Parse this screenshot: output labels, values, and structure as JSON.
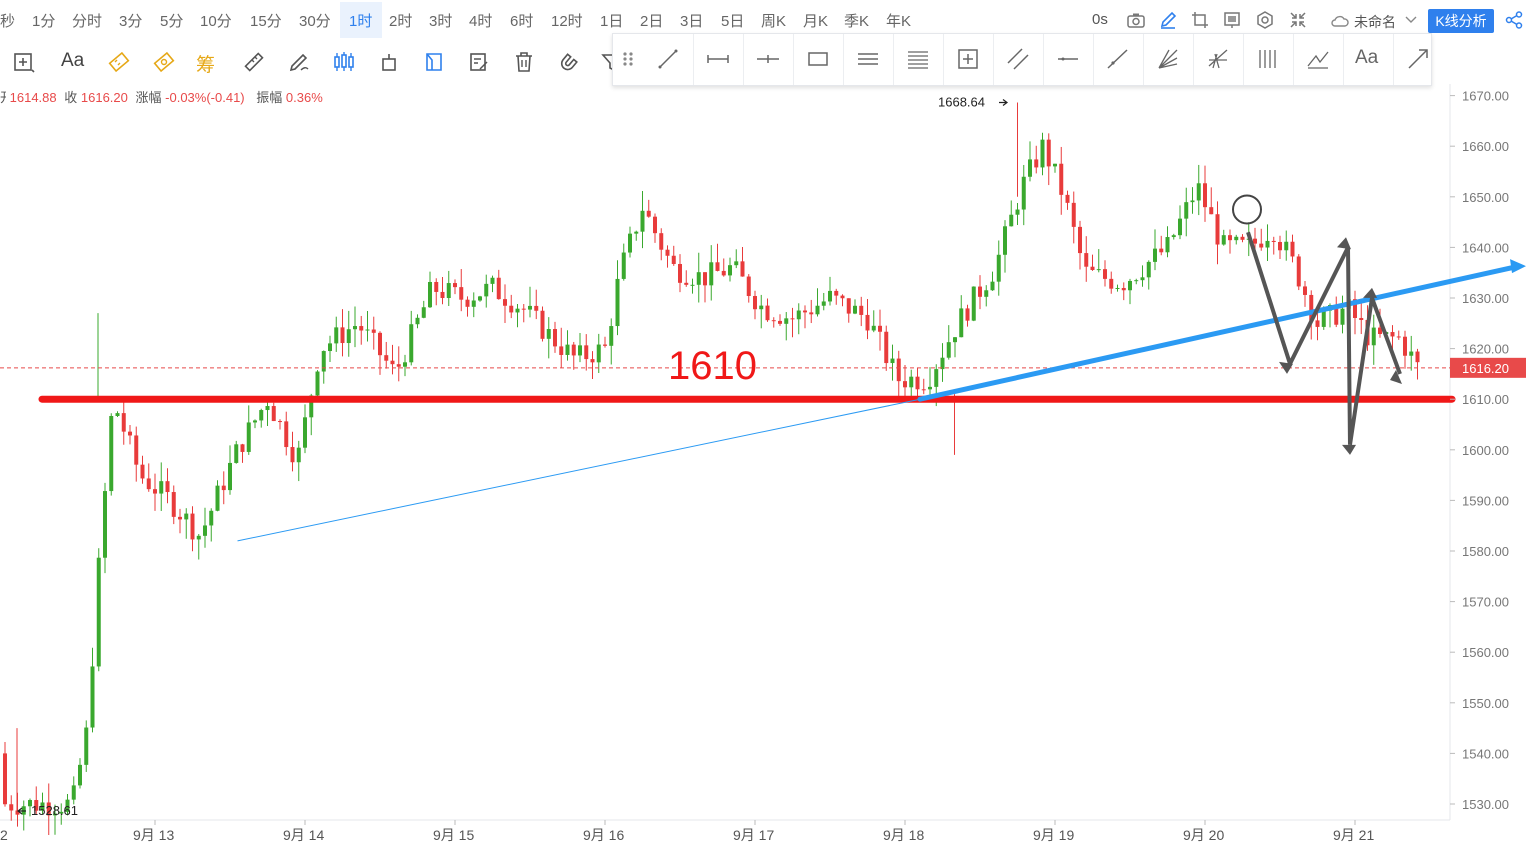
{
  "toolbar": {
    "periods": [
      "秒",
      "1分",
      "分时",
      "3分",
      "5分",
      "10分",
      "15分",
      "30分",
      "1时",
      "2时",
      "3时",
      "4时",
      "6时",
      "12时",
      "1日",
      "2日",
      "3日",
      "5日",
      "周K",
      "月K",
      "季K",
      "年K"
    ],
    "active_period": "1时",
    "latency": "0s",
    "workspace_name": "未命名",
    "analysis_button": "K线分析",
    "text_tool_label": "Aa",
    "chip_tool_label": "筹",
    "icons": [
      "camera-icon",
      "pencil-icon",
      "crop-icon",
      "screen-icon",
      "settings-icon",
      "collapse-icon",
      "cloud-icon",
      "chevron-down-icon",
      "share-icon"
    ]
  },
  "draw_tools": {
    "text_tool_label": "Aa",
    "items": [
      "drag-handle-icon",
      "trend-line-icon",
      "horizontal-segment-icon",
      "cross-line-icon",
      "rectangle-icon",
      "parallel-lines-icon",
      "fib-lines-icon",
      "measure-box-icon",
      "channel-icon",
      "horizontal-line-icon",
      "ray-icon",
      "gann-fan-icon",
      "pitchfork-icon",
      "vertical-lines-icon",
      "pattern-icon",
      "text-icon",
      "arrow-icon"
    ]
  },
  "ohlc": {
    "open_label": "开",
    "open": "1614.88",
    "close_label": "收",
    "close": "1616.20",
    "change_label": "涨幅",
    "change": "-0.03%(-0.41)",
    "amplitude_label": "振幅",
    "amplitude": "0.36%"
  },
  "chart_data": {
    "type": "candlestick",
    "x_labels": [
      "2",
      "9月 13",
      "9月 14",
      "9月 15",
      "9月 16",
      "9月 17",
      "9月 18",
      "9月 19",
      "9月 20",
      "9月 21"
    ],
    "y_ticks": [
      "1530.00",
      "1540.00",
      "1550.00",
      "1560.00",
      "1570.00",
      "1580.00",
      "1590.00",
      "1600.00",
      "1610.00",
      "1620.00",
      "1630.00",
      "1640.00",
      "1650.00",
      "1660.00",
      "1670.00"
    ],
    "ylim": [
      1526,
      1675
    ],
    "last_price": 1616.2,
    "last_price_label": "1616.20",
    "max_label": "1668.64",
    "max_price": 1668.64,
    "min_label": "1528.61",
    "min_price": 1528.61,
    "annotation": "1610",
    "support_level": 1610,
    "up_color": "#3aa82e",
    "down_color": "#e83b3b",
    "trendline_color": "#2b9af3",
    "anchors": [
      {
        "day": 0.45,
        "p": 1530
      },
      {
        "day": 0.55,
        "p": 1545
      },
      {
        "day": 0.62,
        "p": 1575
      },
      {
        "day": 0.72,
        "p": 1610
      },
      {
        "day": 0.9,
        "p": 1595
      },
      {
        "day": 1.1,
        "p": 1590
      },
      {
        "day": 1.3,
        "p": 1583
      },
      {
        "day": 1.55,
        "p": 1600
      },
      {
        "day": 1.75,
        "p": 1610
      },
      {
        "day": 1.95,
        "p": 1598
      },
      {
        "day": 2.1,
        "p": 1620
      },
      {
        "day": 2.35,
        "p": 1625
      },
      {
        "day": 2.6,
        "p": 1615
      },
      {
        "day": 2.85,
        "p": 1632
      },
      {
        "day": 3.05,
        "p": 1630
      },
      {
        "day": 3.25,
        "p": 1632
      },
      {
        "day": 3.45,
        "p": 1628
      },
      {
        "day": 3.65,
        "p": 1622
      },
      {
        "day": 3.8,
        "p": 1618
      },
      {
        "day": 4.0,
        "p": 1620
      },
      {
        "day": 4.1,
        "p": 1635
      },
      {
        "day": 4.25,
        "p": 1648
      },
      {
        "day": 4.45,
        "p": 1636
      },
      {
        "day": 4.65,
        "p": 1634
      },
      {
        "day": 4.85,
        "p": 1636
      },
      {
        "day": 5.05,
        "p": 1628
      },
      {
        "day": 5.25,
        "p": 1626
      },
      {
        "day": 5.5,
        "p": 1630
      },
      {
        "day": 5.75,
        "p": 1626
      },
      {
        "day": 5.95,
        "p": 1614
      },
      {
        "day": 6.15,
        "p": 1614
      },
      {
        "day": 6.35,
        "p": 1625
      },
      {
        "day": 6.6,
        "p": 1636
      },
      {
        "day": 6.78,
        "p": 1652
      },
      {
        "day": 6.92,
        "p": 1660
      },
      {
        "day": 7.06,
        "p": 1650
      },
      {
        "day": 7.2,
        "p": 1635
      },
      {
        "day": 7.45,
        "p": 1633
      },
      {
        "day": 7.75,
        "p": 1640
      },
      {
        "day": 7.95,
        "p": 1652
      },
      {
        "day": 8.12,
        "p": 1640
      },
      {
        "day": 8.3,
        "p": 1640
      },
      {
        "day": 8.45,
        "p": 1644
      },
      {
        "day": 8.6,
        "p": 1636
      },
      {
        "day": 8.75,
        "p": 1625
      },
      {
        "day": 8.95,
        "p": 1628
      },
      {
        "day": 9.1,
        "p": 1622
      },
      {
        "day": 9.3,
        "p": 1622
      },
      {
        "day": 9.42,
        "p": 1616.2
      }
    ]
  }
}
